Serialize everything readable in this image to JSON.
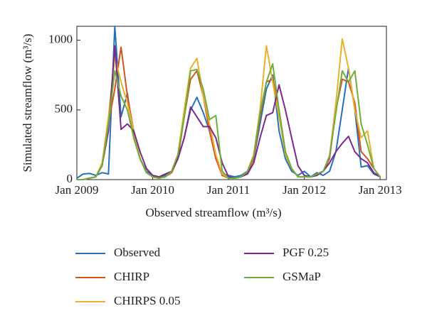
{
  "chart_data": {
    "type": "line",
    "ylabel": "Simulated streamflow (m³/s)",
    "xlabel": "Observed streamflow (m³/s)",
    "x": [
      "2009-01",
      "2009-02",
      "2009-03",
      "2009-04",
      "2009-05",
      "2009-06",
      "2009-07",
      "2009-08",
      "2009-09",
      "2009-10",
      "2009-11",
      "2009-12",
      "2010-01",
      "2010-02",
      "2010-03",
      "2010-04",
      "2010-05",
      "2010-06",
      "2010-07",
      "2010-08",
      "2010-09",
      "2010-10",
      "2010-11",
      "2010-12",
      "2011-01",
      "2011-02",
      "2011-03",
      "2011-04",
      "2011-05",
      "2011-06",
      "2011-07",
      "2011-08",
      "2011-09",
      "2011-10",
      "2011-11",
      "2011-12",
      "2012-01",
      "2012-02",
      "2012-03",
      "2012-04",
      "2012-05",
      "2012-06",
      "2012-07",
      "2012-08",
      "2012-09",
      "2012-10",
      "2012-11",
      "2012-12",
      "2013-01"
    ],
    "xlim": [
      "2009-01",
      "2013-02"
    ],
    "xticks": [
      {
        "value": "2009-01",
        "label": "Jan 2009"
      },
      {
        "value": "2010-01",
        "label": "Jan 2010"
      },
      {
        "value": "2011-01",
        "label": "Jan 2011"
      },
      {
        "value": "2012-01",
        "label": "Jan 2012"
      },
      {
        "value": "2013-01",
        "label": "Jan 2013"
      }
    ],
    "ylim": [
      0,
      1100
    ],
    "yticks": [
      0,
      500,
      1000
    ],
    "series": [
      {
        "name": "Observed",
        "color": "#2672b9",
        "values": [
          10,
          40,
          45,
          30,
          50,
          40,
          1100,
          450,
          620,
          300,
          150,
          60,
          30,
          20,
          30,
          50,
          150,
          300,
          500,
          590,
          480,
          350,
          150,
          40,
          30,
          20,
          30,
          60,
          150,
          400,
          650,
          750,
          350,
          150,
          60,
          30,
          60,
          20,
          50,
          30,
          60,
          200,
          500,
          800,
          500,
          90,
          100,
          40,
          20
        ]
      },
      {
        "name": "CHIRP",
        "color": "#d4531f",
        "values": [
          0,
          0,
          10,
          20,
          100,
          400,
          650,
          950,
          600,
          350,
          150,
          50,
          20,
          10,
          20,
          50,
          150,
          450,
          720,
          780,
          600,
          350,
          150,
          30,
          10,
          10,
          20,
          50,
          150,
          450,
          700,
          720,
          500,
          200,
          80,
          20,
          20,
          20,
          40,
          60,
          150,
          500,
          720,
          700,
          550,
          200,
          150,
          80,
          20
        ]
      },
      {
        "name": "CHIRPS 0.05",
        "color": "#e9b02b",
        "values": [
          0,
          0,
          10,
          20,
          120,
          450,
          880,
          700,
          550,
          350,
          150,
          50,
          20,
          10,
          20,
          60,
          180,
          500,
          800,
          870,
          600,
          400,
          180,
          40,
          10,
          10,
          20,
          60,
          180,
          500,
          960,
          700,
          450,
          180,
          80,
          20,
          20,
          20,
          40,
          60,
          170,
          550,
          1010,
          800,
          500,
          300,
          350,
          80,
          20
        ]
      },
      {
        "name": "PGF 0.25",
        "color": "#7b2a8c",
        "values": [
          0,
          0,
          10,
          20,
          100,
          350,
          960,
          360,
          400,
          350,
          200,
          80,
          30,
          20,
          40,
          60,
          150,
          300,
          520,
          450,
          380,
          380,
          300,
          120,
          20,
          10,
          20,
          40,
          120,
          300,
          460,
          480,
          680,
          500,
          300,
          100,
          30,
          20,
          30,
          60,
          120,
          200,
          260,
          310,
          200,
          150,
          120,
          50,
          20
        ]
      },
      {
        "name": "GSMaP",
        "color": "#6fad3c",
        "values": [
          0,
          0,
          10,
          20,
          100,
          400,
          780,
          600,
          500,
          300,
          150,
          50,
          20,
          10,
          20,
          60,
          180,
          450,
          780,
          790,
          650,
          430,
          460,
          60,
          10,
          10,
          20,
          60,
          170,
          480,
          700,
          830,
          500,
          200,
          80,
          20,
          20,
          20,
          40,
          60,
          170,
          480,
          780,
          700,
          780,
          400,
          250,
          80,
          20
        ]
      }
    ],
    "grid": false
  }
}
